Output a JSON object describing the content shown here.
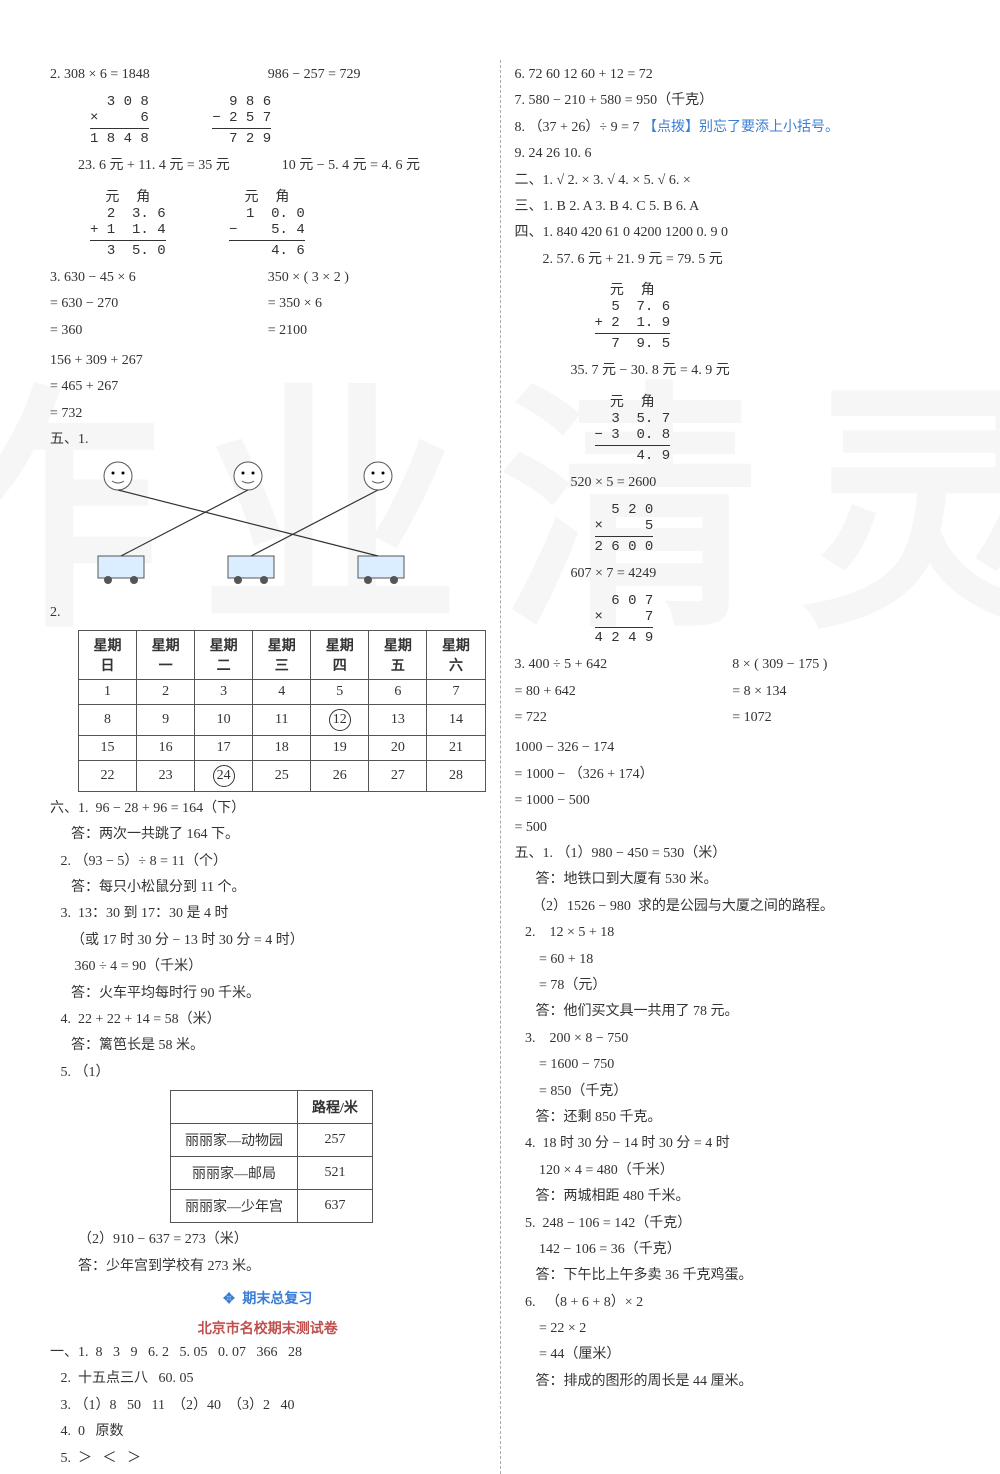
{
  "watermark_text": "作业清灵",
  "left": {
    "q2": {
      "eq1": "2.  308 × 6 = 1848",
      "eq2": "986 − 257 = 729",
      "vcalc1": {
        "r1": "  3 0 8",
        "r2": "×     6",
        "r3": "1 8 4 8"
      },
      "vcalc2": {
        "r1": "  9 8 6",
        "r2": "− 2 5 7",
        "r3": "  7 2 9"
      },
      "eq3": "23. 6 元 + 11. 4 元 = 35 元",
      "eq4": "10 元 − 5. 4 元 = 4. 6 元",
      "vcalc3_header": "元  角",
      "vcalc3": {
        "r1": "2  3. 6",
        "r2": "+ 1  1. 4",
        "r3": "3  5. 0"
      },
      "vcalc4_header": "元  角",
      "vcalc4": {
        "r1": "1  0. 0",
        "r2": "−    5. 4",
        "r3": "   4. 6"
      }
    },
    "q3": {
      "a": [
        "3.   630 − 45 × 6",
        "   = 630 − 270",
        "   = 360"
      ],
      "b": [
        "350 × ( 3 × 2 )",
        "= 350 × 6",
        "= 2100"
      ],
      "c": [
        "     156 + 309 + 267",
        "   = 465 + 267",
        "   = 732"
      ]
    },
    "sec5_label": "五、1.",
    "match": {
      "faces": [
        "",
        "",
        ""
      ],
      "buses": [
        "",
        "",
        ""
      ]
    },
    "cal_label": "2.",
    "cal": {
      "headers": [
        "星期日",
        "星期一",
        "星期二",
        "星期三",
        "星期四",
        "星期五",
        "星期六"
      ],
      "rows": [
        [
          "1",
          "2",
          "3",
          "4",
          "5",
          "6",
          "7"
        ],
        [
          "8",
          "9",
          "10",
          "11",
          "12",
          "13",
          "14"
        ],
        [
          "15",
          "16",
          "17",
          "18",
          "19",
          "20",
          "21"
        ],
        [
          "22",
          "23",
          "24",
          "25",
          "26",
          "27",
          "28"
        ]
      ],
      "circled": [
        "12",
        "24"
      ]
    },
    "sec6": [
      "六、1.  96 − 28 + 96 = 164（下）",
      "      答：两次一共跳了 164 下。",
      "   2. （93 − 5）÷ 8 = 11（个）",
      "      答：每只小松鼠分到 11 个。",
      "   3.  13：30 到 17：30 是 4 时",
      "      （或 17 时 30 分 − 13 时 30 分 = 4 时）",
      "       360 ÷ 4 = 90（千米）",
      "      答：火车平均每时行 90 千米。",
      "   4.  22 + 22 + 14 = 58（米）",
      "      答：篱笆长是 58 米。",
      "   5. （1）"
    ],
    "dist": {
      "header": [
        "",
        "路程/米"
      ],
      "rows": [
        [
          "丽丽家—动物园",
          "257"
        ],
        [
          "丽丽家—邮局",
          "521"
        ],
        [
          "丽丽家—少年宫",
          "637"
        ]
      ]
    },
    "sec6b": [
      "（2）910 − 637 = 273（米）",
      "答：少年宫到学校有 273 米。"
    ],
    "title_review": "期末总复习",
    "title_paper": "北京市名校期末测试卷",
    "sec_yi": [
      "一、1.  8   3   9   6. 2   5. 05   0. 07   366   28",
      "   2.  十五点三八   60. 05",
      "   3. （1）8   50   11  （2）40  （3）2   40",
      "   4.  0   原数",
      "   5.  ＞   ＜   ＞"
    ]
  },
  "right": {
    "cont": [
      "6.  72   60   12   60 + 12 = 72",
      "7.  580 − 210 + 580 = 950（千克）",
      "8. （37 + 26）÷ 9 = 7   ",
      "9.  24   26   10.  6"
    ],
    "hint8": "【点拨】别忘了要添上小括号。",
    "sec_er": "二、1.  √   2.  ×   3.  √   4.  ×   5.  √   6.  ×",
    "sec_san": "三、1.  B   2.  A   3.  B   4.  C   5.  B   6.  A",
    "sec_si_label": "四、1.",
    "sec_si_1": "840   420   61   0   4200   1200   0. 9   0",
    "si2_eq1": "2.  57. 6 元 + 21. 9 元 = 79. 5 元",
    "si2_vcalc1_header": "元  角",
    "si2_vcalc1": {
      "r1": "5  7. 6",
      "r2": "+ 2  1. 9",
      "r3": "7  9. 5"
    },
    "si2_eq2": "35. 7 元 − 30. 8 元 = 4. 9 元",
    "si2_vcalc2_header": "元  角",
    "si2_vcalc2": {
      "r1": "3  5. 7",
      "r2": "− 3  0. 8",
      "r3": "   4. 9"
    },
    "si2_eq3": "520 × 5 = 2600",
    "si2_vcalc3": {
      "r1": "  5 2 0",
      "r2": "×     5",
      "r3": "2 6 0 0"
    },
    "si2_eq4": "607 × 7 = 4249",
    "si2_vcalc4": {
      "r1": "  6 0 7",
      "r2": "×     7",
      "r3": "4 2 4 9"
    },
    "si3": {
      "a": [
        "3.    400 ÷ 5 + 642",
        "    = 80 + 642",
        "    = 722"
      ],
      "b": [
        "8 × ( 309 − 175 )",
        "= 8 × 134",
        "= 1072"
      ],
      "c": [
        "      1000 − 326 − 174",
        "    = 1000 − （326 + 174）",
        "    = 1000 − 500",
        "    = 500"
      ]
    },
    "sec_wu": [
      "五、1. （1）980 − 450 = 530（米）",
      "      答：地铁口到大厦有 530 米。",
      "     （2）1526 − 980  求的是公园与大厦之间的路程。",
      "   2.    12 × 5 + 18",
      "       = 60 + 18",
      "       = 78（元）",
      "      答：他们买文具一共用了 78 元。",
      "   3.    200 × 8 − 750",
      "       = 1600 − 750",
      "       = 850（千克）",
      "      答：还剩 850 千克。",
      "   4.  18 时 30 分 − 14 时 30 分 = 4 时",
      "       120 × 4 = 480（千米）",
      "      答：两城相距 480 千米。",
      "   5.  248 − 106 = 142（千克）",
      "       142 − 106 = 36（千克）",
      "      答：下午比上午多卖 36 千克鸡蛋。",
      "   6.   （8 + 6 + 8）× 2",
      "       = 22 × 2",
      "       = 44（厘米）",
      "      答：排成的图形的周长是 44 厘米。"
    ]
  }
}
